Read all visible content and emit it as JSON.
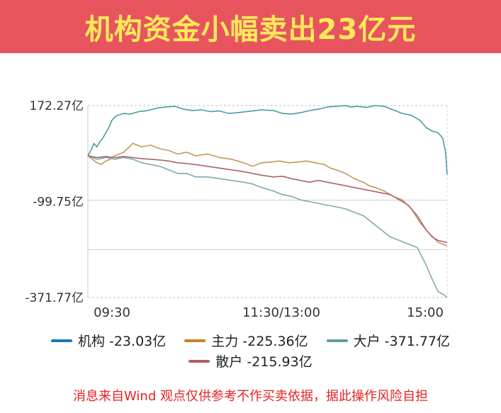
{
  "header": {
    "title": "机构资金小幅卖出23亿元"
  },
  "footer": {
    "disclaimer": "消息来自Wind  观点仅供参考不作买卖依据，据此操作风险自担"
  },
  "chart_data": {
    "type": "line",
    "title": "",
    "xlabel": "",
    "ylabel": "",
    "x_ticks": [
      "09:30",
      "11:30/13:00",
      "15:00"
    ],
    "y_ticks": [
      "172.27亿",
      "-99.75亿",
      "-371.77亿"
    ],
    "y_tick_values": [
      172.27,
      -99.75,
      -371.77
    ],
    "ylim": [
      -371.77,
      172.27
    ],
    "x_range_minutes": [
      0,
      240
    ],
    "grid": true,
    "legend_placement": "bottom",
    "series": [
      {
        "name": "机构",
        "legend_label": "机构 -23.03亿",
        "final_value": -23.03,
        "color": "#1f77b4",
        "line_color": "#4e9aa0",
        "x": [
          0,
          2,
          4,
          6,
          8,
          10,
          12,
          14,
          16,
          18,
          20,
          24,
          28,
          34,
          40,
          46,
          52,
          58,
          64,
          70,
          76,
          82,
          88,
          94,
          100,
          108,
          116,
          124,
          130,
          136,
          142,
          148,
          154,
          160,
          166,
          172,
          176,
          180,
          186,
          192,
          198,
          204,
          210,
          216,
          222,
          226,
          230,
          234,
          237,
          239,
          240
        ],
        "y": [
          30,
          45,
          65,
          55,
          70,
          80,
          95,
          110,
          130,
          140,
          145,
          150,
          148,
          155,
          158,
          165,
          168,
          170,
          162,
          158,
          160,
          155,
          157,
          150,
          152,
          156,
          160,
          158,
          150,
          148,
          152,
          158,
          162,
          168,
          170,
          172,
          168,
          170,
          167,
          172,
          170,
          160,
          150,
          145,
          130,
          110,
          100,
          95,
          80,
          40,
          -23.03
        ]
      },
      {
        "name": "主力",
        "legend_label": "主力 -225.36亿",
        "final_value": -225.36,
        "color": "#c87f2a",
        "line_color": "#c4985a",
        "x": [
          0,
          3,
          6,
          9,
          12,
          15,
          18,
          24,
          30,
          36,
          42,
          48,
          54,
          60,
          66,
          72,
          80,
          88,
          96,
          104,
          110,
          116,
          122,
          128,
          134,
          140,
          146,
          152,
          158,
          162,
          166,
          172,
          178,
          184,
          188,
          192,
          198,
          204,
          210,
          216,
          222,
          228,
          234,
          240
        ],
        "y": [
          30,
          20,
          10,
          5,
          15,
          20,
          30,
          40,
          65,
          55,
          60,
          50,
          45,
          35,
          40,
          30,
          35,
          25,
          20,
          10,
          0,
          10,
          12,
          15,
          10,
          12,
          15,
          10,
          5,
          -5,
          -10,
          -20,
          -35,
          -45,
          -55,
          -60,
          -70,
          -85,
          -95,
          -120,
          -160,
          -190,
          -215,
          -225.36
        ]
      },
      {
        "name": "大户",
        "legend_label": "大户 -371.77亿",
        "final_value": -371.77,
        "color": "#5f9ea0",
        "line_color": "#7faab0",
        "x": [
          0,
          6,
          12,
          18,
          24,
          30,
          36,
          42,
          48,
          54,
          60,
          66,
          72,
          80,
          88,
          96,
          104,
          110,
          116,
          124,
          130,
          136,
          142,
          148,
          154,
          160,
          166,
          172,
          178,
          184,
          190,
          196,
          202,
          208,
          214,
          220,
          226,
          230,
          234,
          238,
          240
        ],
        "y": [
          30,
          20,
          25,
          20,
          25,
          20,
          10,
          5,
          0,
          -10,
          -20,
          -20,
          -30,
          -30,
          -35,
          -40,
          -45,
          -50,
          -60,
          -70,
          -80,
          -85,
          -95,
          -100,
          -105,
          -110,
          -115,
          -120,
          -130,
          -140,
          -160,
          -180,
          -200,
          -210,
          -220,
          -230,
          -280,
          -320,
          -355,
          -365,
          -371.77
        ]
      },
      {
        "name": "散户",
        "legend_label": "散户 -215.93亿",
        "final_value": -215.93,
        "color": "#b55c5c",
        "line_color": "#a8646a",
        "x": [
          0,
          6,
          12,
          18,
          24,
          30,
          36,
          42,
          48,
          54,
          60,
          66,
          72,
          80,
          88,
          96,
          104,
          110,
          116,
          124,
          130,
          136,
          142,
          148,
          154,
          160,
          166,
          172,
          178,
          184,
          190,
          196,
          202,
          208,
          214,
          220,
          226,
          230,
          234,
          240
        ],
        "y": [
          30,
          25,
          28,
          25,
          28,
          25,
          22,
          20,
          18,
          15,
          10,
          8,
          5,
          0,
          -5,
          -10,
          -15,
          -20,
          -25,
          -30,
          -28,
          -35,
          -40,
          -45,
          -40,
          -45,
          -50,
          -55,
          -60,
          -65,
          -70,
          -75,
          -80,
          -95,
          -110,
          -140,
          -180,
          -200,
          -210,
          -215.93
        ]
      }
    ]
  }
}
